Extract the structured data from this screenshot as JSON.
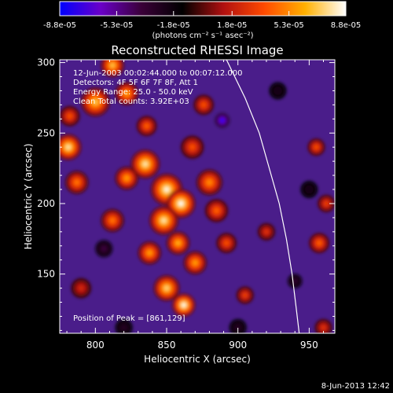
{
  "chart_data": {
    "type": "heatmap",
    "title": "Reconstructed RHESSI Image",
    "xlabel": "Heliocentric X (arcsec)",
    "ylabel": "Heliocentric Y (arcsec)",
    "xlim": [
      775,
      968
    ],
    "ylim": [
      108,
      302
    ],
    "x_ticks": [
      800,
      850,
      900,
      950
    ],
    "y_ticks": [
      150,
      200,
      250,
      300
    ],
    "grid": false,
    "colorbar": {
      "min": -8.8e-05,
      "max": 8.8e-05,
      "tick_labels": [
        "-8.8e-05",
        "-5.3e-05",
        "-1.8e-05",
        "1.8e-05",
        "5.3e-05",
        "8.8e-05"
      ],
      "tick_values": [
        -8.8e-05,
        -5.3e-05,
        -1.8e-05,
        1.8e-05,
        5.3e-05,
        8.8e-05
      ],
      "units_line": "(photons cm⁻² s⁻¹ asec⁻²)",
      "colors": [
        "#0000ff",
        "#6a00c8",
        "#3a0038",
        "#000000",
        "#b01010",
        "#ff4a00",
        "#ffb000",
        "#ffffff"
      ]
    },
    "info": {
      "time_range": "12-Jun-2003 00:02:44.000 to 00:07:12.000",
      "detectors": "Detectors: 4F 5F 6F 7F 8F, Att 1",
      "energy": "Energy Range: 25.0 - 50.0 keV",
      "method": "Clean    Total counts: 3.92E+03",
      "peak": "Position of Peak = [861,129]"
    },
    "limb_points": [
      [
        892,
        302
      ],
      [
        905,
        275
      ],
      [
        915,
        250
      ],
      [
        922,
        225
      ],
      [
        929,
        200
      ],
      [
        934,
        175
      ],
      [
        938,
        150
      ],
      [
        941,
        125
      ],
      [
        943,
        108
      ]
    ],
    "sources": [
      {
        "x": 781,
        "y": 240,
        "value": 8e-05,
        "r": 9
      },
      {
        "x": 787,
        "y": 215,
        "value": 5e-05,
        "r": 8
      },
      {
        "x": 782,
        "y": 262,
        "value": 4e-05,
        "r": 7
      },
      {
        "x": 800,
        "y": 272,
        "value": 7e-05,
        "r": 10
      },
      {
        "x": 812,
        "y": 298,
        "value": 7e-05,
        "r": 8
      },
      {
        "x": 822,
        "y": 278,
        "value": 6e-05,
        "r": 8
      },
      {
        "x": 835,
        "y": 228,
        "value": 8e-05,
        "r": 10
      },
      {
        "x": 822,
        "y": 218,
        "value": 6e-05,
        "r": 8
      },
      {
        "x": 850,
        "y": 210,
        "value": 8.5e-05,
        "r": 11
      },
      {
        "x": 860,
        "y": 200,
        "value": 8.8e-05,
        "r": 10
      },
      {
        "x": 848,
        "y": 188,
        "value": 8e-05,
        "r": 10
      },
      {
        "x": 858,
        "y": 172,
        "value": 6.5e-05,
        "r": 8
      },
      {
        "x": 838,
        "y": 165,
        "value": 6e-05,
        "r": 8
      },
      {
        "x": 812,
        "y": 188,
        "value": 5e-05,
        "r": 8
      },
      {
        "x": 870,
        "y": 158,
        "value": 6e-05,
        "r": 8
      },
      {
        "x": 850,
        "y": 140,
        "value": 7.5e-05,
        "r": 9
      },
      {
        "x": 862,
        "y": 128,
        "value": 8.8e-05,
        "r": 8
      },
      {
        "x": 880,
        "y": 215,
        "value": 5.5e-05,
        "r": 9
      },
      {
        "x": 885,
        "y": 195,
        "value": 4.5e-05,
        "r": 8
      },
      {
        "x": 892,
        "y": 172,
        "value": 4e-05,
        "r": 7
      },
      {
        "x": 868,
        "y": 240,
        "value": 4e-05,
        "r": 8
      },
      {
        "x": 876,
        "y": 270,
        "value": 4e-05,
        "r": 7
      },
      {
        "x": 836,
        "y": 255,
        "value": 4.5e-05,
        "r": 7
      },
      {
        "x": 920,
        "y": 180,
        "value": 3e-05,
        "r": 6
      },
      {
        "x": 957,
        "y": 172,
        "value": 4.5e-05,
        "r": 7
      },
      {
        "x": 962,
        "y": 200,
        "value": 3.5e-05,
        "r": 6
      },
      {
        "x": 955,
        "y": 240,
        "value": 4e-05,
        "r": 6
      },
      {
        "x": 905,
        "y": 135,
        "value": 3.5e-05,
        "r": 6
      },
      {
        "x": 960,
        "y": 112,
        "value": 3e-05,
        "r": 6
      },
      {
        "x": 790,
        "y": 140,
        "value": 2.5e-05,
        "r": 7
      },
      {
        "x": 889,
        "y": 259,
        "value": -8.8e-05,
        "r": 5
      },
      {
        "x": 806,
        "y": 168,
        "value": -4e-05,
        "r": 6
      },
      {
        "x": 820,
        "y": 112,
        "value": -3e-05,
        "r": 6
      },
      {
        "x": 940,
        "y": 145,
        "value": -3.5e-05,
        "r": 5
      },
      {
        "x": 950,
        "y": 210,
        "value": -2.5e-05,
        "r": 6
      },
      {
        "x": 900,
        "y": 112,
        "value": -3e-05,
        "r": 6
      },
      {
        "x": 928,
        "y": 280,
        "value": -2.5e-05,
        "r": 6
      }
    ]
  },
  "footer": {
    "timestamp": "8-Jun-2013 12:42"
  }
}
